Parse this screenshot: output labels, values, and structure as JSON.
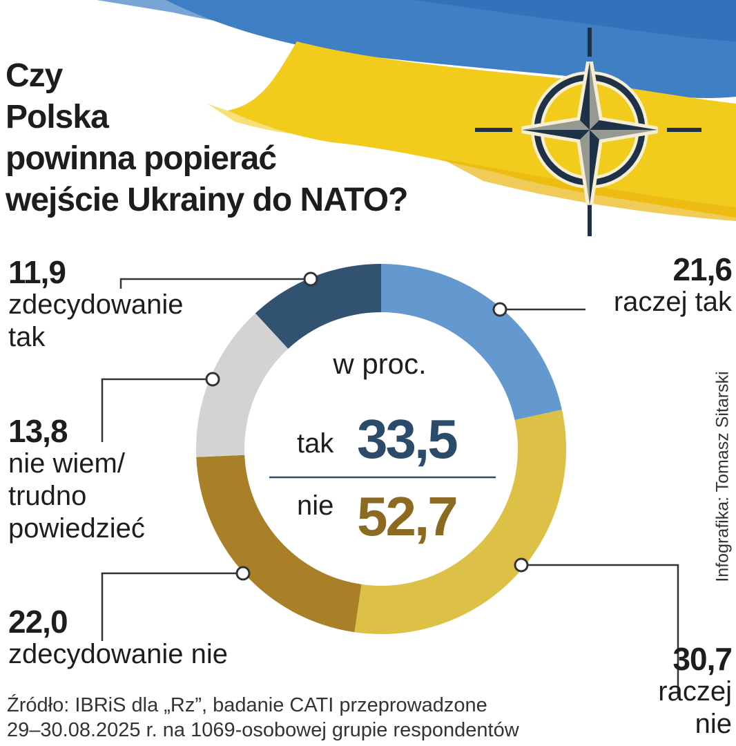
{
  "title_lines": [
    "Czy",
    "Polska",
    "powinna popierać",
    "wejście Ukrainy do NATO?"
  ],
  "colors": {
    "flag_blue": "#3f7fc4",
    "flag_yellow": "#f2cc1c",
    "nato_navy": "#1f3146",
    "tak_color": "#2c4b6a",
    "nie_color": "#8d6a22"
  },
  "icons": [
    "nato-compass-icon"
  ],
  "chart_data": {
    "type": "pie",
    "variant": "donut",
    "unit": "w proc.",
    "slices": [
      {
        "name": "raczej tak",
        "value": 21.6,
        "value_label": "21,6",
        "color": "#6499cf"
      },
      {
        "name": "raczej nie",
        "value": 30.7,
        "value_label": "30,7",
        "color": "#ddc046"
      },
      {
        "name": "zdecydowanie nie",
        "value": 22.0,
        "value_label": "22,0",
        "color": "#a97f27"
      },
      {
        "name": "nie wiem/ trudno powiedzieć",
        "value": 13.8,
        "value_label": "13,8",
        "color": "#d3d3d3"
      },
      {
        "name": "zdecydowanie tak",
        "value": 11.9,
        "value_label": "11,9",
        "color": "#325272"
      }
    ],
    "summary": {
      "tak_label": "tak",
      "tak_value": "33,5",
      "nie_label": "nie",
      "nie_value": "52,7"
    },
    "labels": {
      "zdecydowanie_tak": {
        "value": "11,9",
        "lines": [
          "zdecydowanie",
          "tak"
        ]
      },
      "raczej_tak": {
        "value": "21,6",
        "lines": [
          "raczej tak"
        ]
      },
      "nie_wiem": {
        "value": "13,8",
        "lines": [
          "nie wiem/",
          "trudno",
          "powiedzieć"
        ]
      },
      "zdecydowanie_nie": {
        "value": "22,0",
        "lines": [
          "zdecydowanie nie"
        ]
      },
      "raczej_nie": {
        "value": "30,7",
        "lines": [
          "raczej",
          "nie"
        ]
      }
    }
  },
  "source_lines": [
    "Źródło: IBRiS dla „Rz”, badanie CATI przeprowadzone",
    "29–30.08.2025 r. na 1069-osobowej grupie respondentów"
  ],
  "credit": "Infografika: Tomasz Sitarski"
}
